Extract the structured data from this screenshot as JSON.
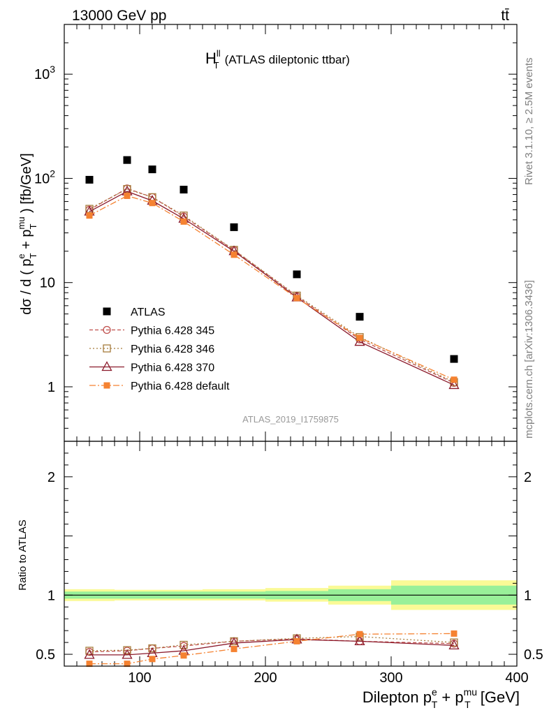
{
  "header": {
    "energy_label": "13000 GeV pp",
    "process_label": "tt̄"
  },
  "side": {
    "rivet_label": "Rivet 3.1.10, ≥ 2.5M events",
    "source_label": "mcplots.cern.ch [arXiv:1306.3436]"
  },
  "main": {
    "title_main": "H",
    "title_sup": "ll",
    "title_sub": "T",
    "title_rest": "(ATLAS dileptonic ttbar)",
    "analysis_id": "ATLAS_2019_I1759875",
    "ylabel": {
      "p1": "dσ / d ( p",
      "s1sup": "e",
      "s1sub": "T",
      "p2": " + p",
      "s2sup": "mu",
      "s2sub": "T",
      "p3": " ) [fb/GeV]"
    },
    "ytick_labels": [
      "1",
      "10",
      "10",
      "10"
    ],
    "ytick_sups": [
      "",
      "",
      "2",
      "3"
    ]
  },
  "ratio": {
    "ylabel": "Ratio to ATLAS",
    "ytick_labels": [
      "0.5",
      "1",
      "2"
    ]
  },
  "xaxis": {
    "tick_labels": [
      "100",
      "200",
      "300",
      "400"
    ],
    "label": {
      "p1": "Dilepton p",
      "s1sup": "e",
      "s1sub": "T",
      "p2": " + p",
      "s2sup": "mu",
      "s2sub": "T",
      "p3": " [GeV]"
    }
  },
  "colors": {
    "data": "#000000",
    "p345": "#c0504d",
    "p346": "#a67c3c",
    "p370": "#8b1a2b",
    "pdefault": "#f58231",
    "band_inner": "#99f099",
    "band_outer": "#fafa96"
  },
  "chart_data": [
    {
      "type": "scatter",
      "panel": "main",
      "log_y": true,
      "xlim": [
        40,
        400
      ],
      "ylim": [
        0.3,
        3000
      ],
      "x": [
        60,
        90,
        110,
        135,
        175,
        225,
        275,
        350
      ],
      "x_bins": [
        [
          40,
          80
        ],
        [
          80,
          100
        ],
        [
          100,
          120
        ],
        [
          120,
          150
        ],
        [
          150,
          200
        ],
        [
          200,
          250
        ],
        [
          250,
          300
        ],
        [
          300,
          400
        ]
      ],
      "series": [
        {
          "name": "ATLAS",
          "key": "data",
          "style": "data",
          "values": [
            97,
            150,
            122,
            78,
            34,
            12,
            4.7,
            1.85
          ]
        },
        {
          "name": "Pythia 6.428 345",
          "key": "p345",
          "style": "circle",
          "dash": "5,3",
          "values": [
            50,
            80,
            66,
            43,
            20.5,
            7.4,
            2.85,
            1.09
          ]
        },
        {
          "name": "Pythia 6.428 346",
          "key": "p346",
          "style": "square",
          "dash": "2,3",
          "values": [
            51,
            79,
            66,
            44,
            20.6,
            7.5,
            3.0,
            1.11
          ]
        },
        {
          "name": "Pythia 6.428 370",
          "key": "p370",
          "style": "triangle",
          "dash": "",
          "values": [
            48,
            75,
            61,
            41,
            20,
            7.2,
            2.7,
            1.04
          ]
        },
        {
          "name": "Pythia 6.428 default",
          "key": "pdefault",
          "style": "fsquare",
          "dash": "9,3,2,3",
          "values": [
            44,
            68,
            58,
            38.5,
            18.5,
            7.1,
            2.95,
            1.17
          ]
        }
      ]
    },
    {
      "type": "line",
      "panel": "ratio",
      "ylabel": "Ratio to ATLAS",
      "xlim": [
        40,
        400
      ],
      "ylim": [
        0.4,
        2.3
      ],
      "x": [
        60,
        90,
        110,
        135,
        175,
        225,
        275,
        350
      ],
      "uncertainty_band": {
        "bins": [
          [
            40,
            80
          ],
          [
            80,
            100
          ],
          [
            100,
            120
          ],
          [
            120,
            150
          ],
          [
            150,
            200
          ],
          [
            200,
            250
          ],
          [
            250,
            300
          ],
          [
            300,
            400
          ]
        ],
        "stat_low": [
          0.97,
          0.97,
          0.97,
          0.97,
          0.97,
          0.965,
          0.95,
          0.92
        ],
        "stat_high": [
          1.03,
          1.03,
          1.03,
          1.03,
          1.03,
          1.035,
          1.05,
          1.08
        ],
        "total_low": [
          0.95,
          0.955,
          0.955,
          0.955,
          0.955,
          0.945,
          0.92,
          0.875
        ],
        "total_high": [
          1.05,
          1.045,
          1.045,
          1.045,
          1.05,
          1.06,
          1.08,
          1.125
        ]
      },
      "series": [
        {
          "name": "Pythia 6.428 345",
          "key": "p345",
          "style": "circle",
          "dash": "5,3",
          "values": [
            0.52,
            0.53,
            0.55,
            0.57,
            0.61,
            0.63,
            0.61,
            0.59
          ]
        },
        {
          "name": "Pythia 6.428 346",
          "key": "p346",
          "style": "square",
          "dash": "2,3",
          "values": [
            0.53,
            0.535,
            0.55,
            0.58,
            0.61,
            0.635,
            0.65,
            0.6
          ]
        },
        {
          "name": "Pythia 6.428 370",
          "key": "p370",
          "style": "triangle",
          "dash": "",
          "values": [
            0.495,
            0.495,
            0.51,
            0.53,
            0.595,
            0.625,
            0.61,
            0.575
          ]
        },
        {
          "name": "Pythia 6.428 default",
          "key": "pdefault",
          "style": "fsquare",
          "dash": "9,3,2,3",
          "values": [
            0.42,
            0.42,
            0.46,
            0.49,
            0.545,
            0.61,
            0.67,
            0.675
          ]
        }
      ]
    }
  ]
}
